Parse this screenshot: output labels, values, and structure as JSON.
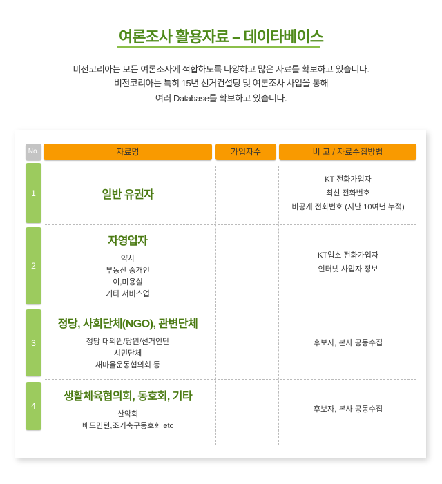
{
  "title": "여론조사 활용자료 – 데이타베이스",
  "intro": [
    "비전코리아는 모든 여론조사에 적합하도록 다양하고 많은 자료를 확보하고 있습니다.",
    "비전코리아는 특히 15년 선거컨설팅 및 여론조사 사업을 통해",
    "여러 Database를 확보하고 있습니다."
  ],
  "table": {
    "headers": [
      "No.",
      "자료명",
      "가입자수",
      "비 고 / 자료수집방법"
    ],
    "rows": [
      {
        "no": "1",
        "name": "일반 유권자",
        "details": [],
        "count": "",
        "notes": [
          "KT 전화가입자",
          "최신 전화번호",
          "비공개 전화번호 (지난 10여년 누적)"
        ]
      },
      {
        "no": "2",
        "name": "자영업자",
        "details": [
          "약사",
          "부동산 중개인",
          "이,미용실",
          "기타 서비스업"
        ],
        "count": "",
        "notes": [
          "KT업소 전화가입자",
          "인터넷 사업자 정보"
        ]
      },
      {
        "no": "3",
        "name": "정당, 사회단체(NGO), 관변단체",
        "details": [
          "정당 대의원/당원/선거인단",
          "시민단체",
          "새마을운동협의회 등"
        ],
        "count": "",
        "notes": [
          "후보자, 본사 공동수집"
        ]
      },
      {
        "no": "4",
        "name": "생활체육협의회, 동호회, 기타",
        "details": [
          "산악회",
          "배드민턴,조기축구동호회 etc"
        ],
        "count": "",
        "notes": [
          "후보자, 본사 공동수집"
        ]
      }
    ]
  },
  "colors": {
    "header": "#f99a00",
    "number": "#9ccb5e",
    "title": "#4f8a1a"
  }
}
